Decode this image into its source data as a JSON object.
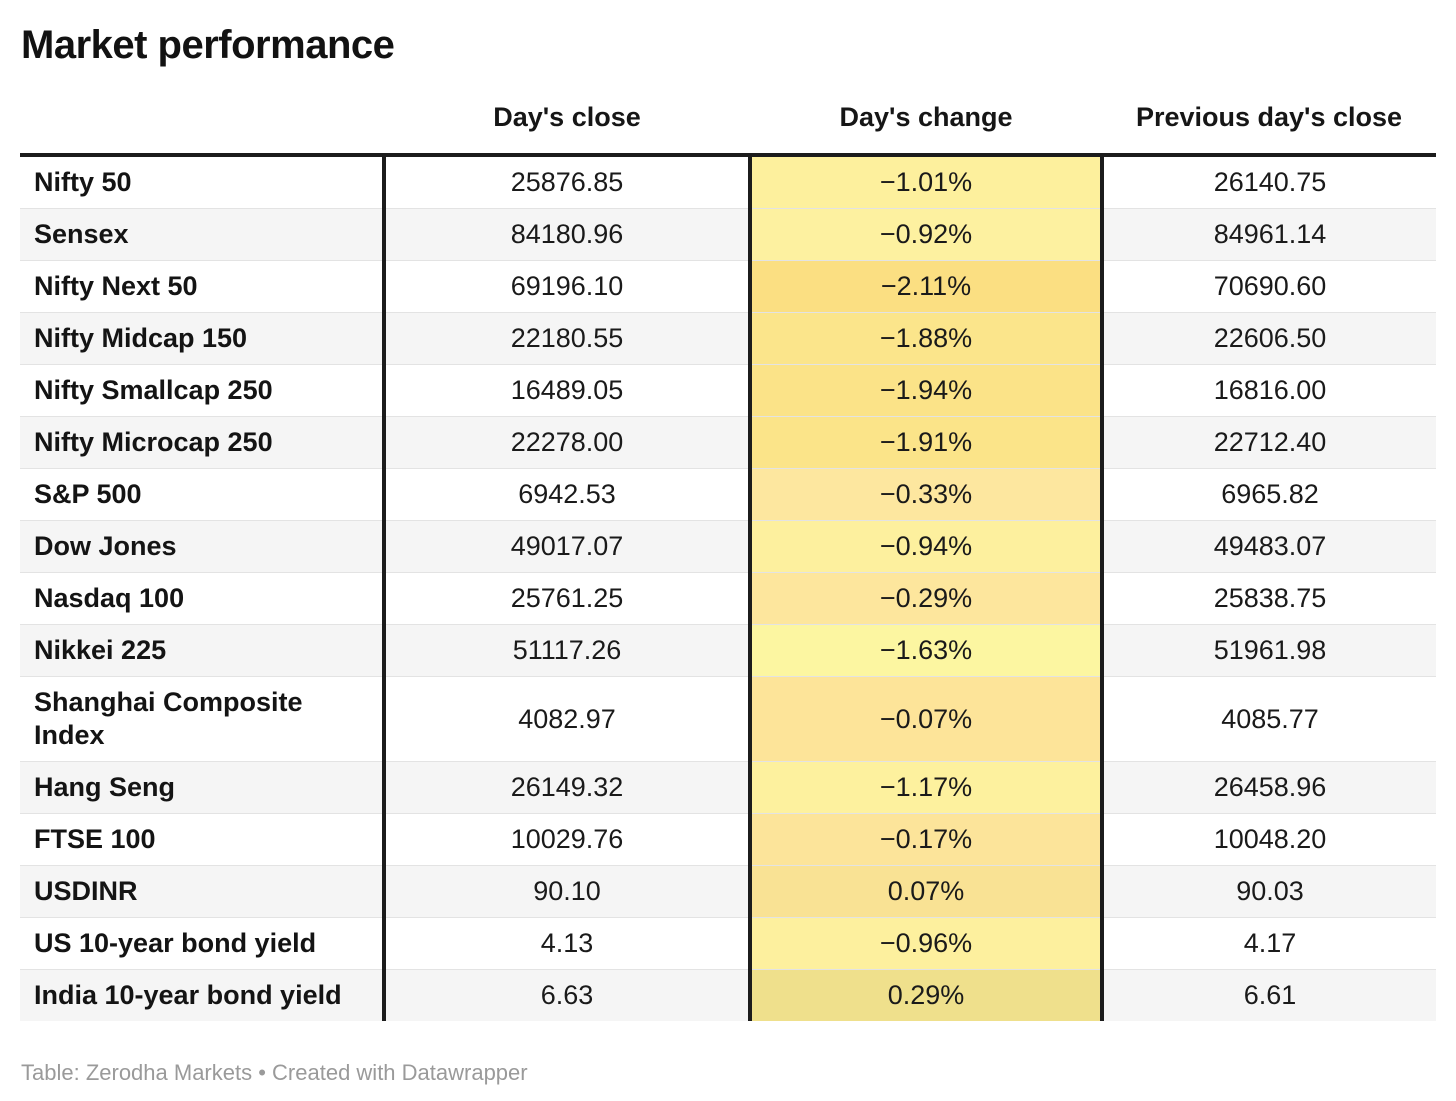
{
  "title": "Market performance",
  "columns": {
    "label": "",
    "close": "Day's close",
    "change": "Day's change",
    "prev": "Previous day's close"
  },
  "footer": "Table: Zerodha Markets • Created with Datawrapper",
  "colors": {
    "stripe": "#f5f5f5",
    "border_heavy": "#1c1c1c",
    "row_separator": "#e3e3e3",
    "footer_text": "#9a9a9a"
  },
  "chart_data": {
    "type": "table",
    "title": "Market performance",
    "columns": [
      "",
      "Day's close",
      "Day's change",
      "Previous day's close"
    ],
    "rows": [
      {
        "label": "Nifty 50",
        "close": "25876.85",
        "change": "−1.01%",
        "prev": "26140.75",
        "change_color": "#FDF09D"
      },
      {
        "label": "Sensex",
        "close": "84180.96",
        "change": "−0.92%",
        "prev": "84961.14",
        "change_color": "#FDF1A0"
      },
      {
        "label": "Nifty Next 50",
        "close": "69196.10",
        "change": "−2.11%",
        "prev": "70690.60",
        "change_color": "#FBDF82"
      },
      {
        "label": "Nifty Midcap 150",
        "close": "22180.55",
        "change": "−1.88%",
        "prev": "22606.50",
        "change_color": "#FBE58B"
      },
      {
        "label": "Nifty Smallcap 250",
        "close": "16489.05",
        "change": "−1.94%",
        "prev": "16816.00",
        "change_color": "#FBE388"
      },
      {
        "label": "Nifty Microcap 250",
        "close": "22278.00",
        "change": "−1.91%",
        "prev": "22712.40",
        "change_color": "#FBE489"
      },
      {
        "label": "S&P 500",
        "close": "6942.53",
        "change": "−0.33%",
        "prev": "6965.82",
        "change_color": "#FDE79F"
      },
      {
        "label": "Dow Jones",
        "close": "49017.07",
        "change": "−0.94%",
        "prev": "49483.07",
        "change_color": "#FDF09E"
      },
      {
        "label": "Nasdaq 100",
        "close": "25761.25",
        "change": "−0.29%",
        "prev": "25838.75",
        "change_color": "#FDE69D"
      },
      {
        "label": "Nikkei 225",
        "close": "51117.26",
        "change": "−1.63%",
        "prev": "51961.98",
        "change_color": "#FCF6A1"
      },
      {
        "label": "Shanghai Composite Index",
        "close": "4082.97",
        "change": "−0.07%",
        "prev": "4085.77",
        "change_color": "#FDE499"
      },
      {
        "label": "Hang Seng",
        "close": "26149.32",
        "change": "−1.17%",
        "prev": "26458.96",
        "change_color": "#FDF19E"
      },
      {
        "label": "FTSE 100",
        "close": "10029.76",
        "change": "−0.17%",
        "prev": "10048.20",
        "change_color": "#FCE49A"
      },
      {
        "label": "USDINR",
        "close": "90.10",
        "change": "0.07%",
        "prev": "90.03",
        "change_color": "#F9E294"
      },
      {
        "label": "US 10-year bond yield",
        "close": "4.13",
        "change": "−0.96%",
        "prev": "4.17",
        "change_color": "#FDF09E"
      },
      {
        "label": "India 10-year bond yield",
        "close": "6.63",
        "change": "0.29%",
        "prev": "6.61",
        "change_color": "#EFE08C"
      }
    ]
  }
}
